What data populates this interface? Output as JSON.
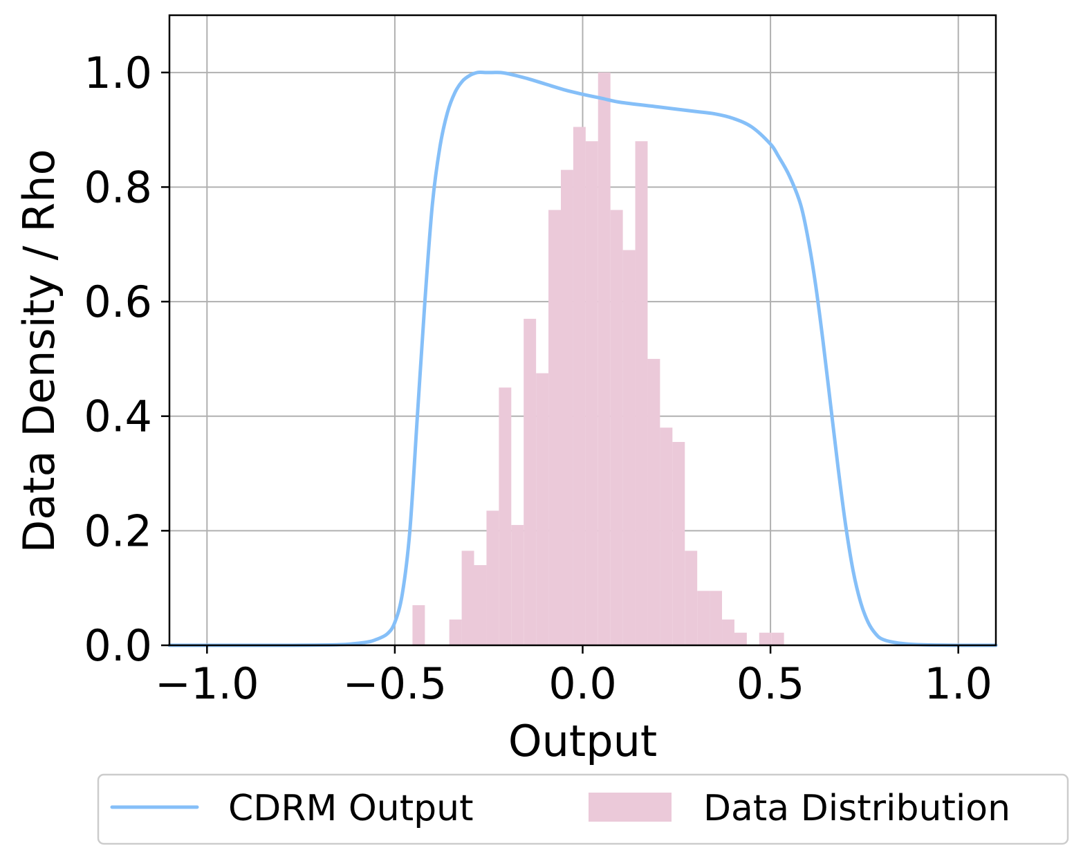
{
  "chart_data": {
    "type": "bar",
    "title": "",
    "xlabel": "Output",
    "ylabel": "Data Density / Rho",
    "xlim": [
      -1.1,
      1.1
    ],
    "ylim": [
      0.0,
      1.1
    ],
    "grid": true,
    "x_ticks": [
      -1.0,
      -0.5,
      0.0,
      0.5,
      1.0
    ],
    "x_tick_labels": [
      "−1.0",
      "−0.5",
      "0.0",
      "0.5",
      "1.0"
    ],
    "y_ticks": [
      0.0,
      0.2,
      0.4,
      0.6,
      0.8,
      1.0
    ],
    "y_tick_labels": [
      "0.0",
      "0.2",
      "0.4",
      "0.6",
      "0.8",
      "1.0"
    ],
    "legend": {
      "placement": "bottom-center",
      "entries": [
        {
          "label": "CDRM Output",
          "kind": "line",
          "color": "#85bff8"
        },
        {
          "label": "Data Distribution",
          "kind": "patch",
          "color": "#ebc9d9"
        }
      ]
    },
    "series": [
      {
        "name": "Data Distribution",
        "kind": "histogram",
        "color": "#ebc9d9",
        "bins": [
          {
            "x0": -0.453,
            "x1": -0.42,
            "value": 0.07
          },
          {
            "x0": -0.355,
            "x1": -0.322,
            "value": 0.045
          },
          {
            "x0": -0.322,
            "x1": -0.289,
            "value": 0.165
          },
          {
            "x0": -0.289,
            "x1": -0.256,
            "value": 0.14
          },
          {
            "x0": -0.256,
            "x1": -0.223,
            "value": 0.235
          },
          {
            "x0": -0.223,
            "x1": -0.19,
            "value": 0.45
          },
          {
            "x0": -0.19,
            "x1": -0.157,
            "value": 0.21
          },
          {
            "x0": -0.157,
            "x1": -0.124,
            "value": 0.57
          },
          {
            "x0": -0.124,
            "x1": -0.091,
            "value": 0.475
          },
          {
            "x0": -0.091,
            "x1": -0.058,
            "value": 0.76
          },
          {
            "x0": -0.058,
            "x1": -0.025,
            "value": 0.83
          },
          {
            "x0": -0.025,
            "x1": 0.008,
            "value": 0.905
          },
          {
            "x0": 0.008,
            "x1": 0.041,
            "value": 0.88
          },
          {
            "x0": 0.041,
            "x1": 0.074,
            "value": 1.0
          },
          {
            "x0": 0.074,
            "x1": 0.107,
            "value": 0.76
          },
          {
            "x0": 0.107,
            "x1": 0.14,
            "value": 0.69
          },
          {
            "x0": 0.14,
            "x1": 0.173,
            "value": 0.88
          },
          {
            "x0": 0.173,
            "x1": 0.206,
            "value": 0.5
          },
          {
            "x0": 0.206,
            "x1": 0.239,
            "value": 0.38
          },
          {
            "x0": 0.239,
            "x1": 0.272,
            "value": 0.355
          },
          {
            "x0": 0.272,
            "x1": 0.305,
            "value": 0.165
          },
          {
            "x0": 0.305,
            "x1": 0.338,
            "value": 0.095
          },
          {
            "x0": 0.338,
            "x1": 0.371,
            "value": 0.095
          },
          {
            "x0": 0.371,
            "x1": 0.404,
            "value": 0.045
          },
          {
            "x0": 0.404,
            "x1": 0.437,
            "value": 0.022
          },
          {
            "x0": 0.47,
            "x1": 0.503,
            "value": 0.022
          },
          {
            "x0": 0.503,
            "x1": 0.536,
            "value": 0.022
          }
        ]
      },
      {
        "name": "CDRM Output",
        "kind": "line",
        "color": "#85bff8",
        "x": [
          -1.1,
          -1.0,
          -0.8,
          -0.65,
          -0.58,
          -0.55,
          -0.52,
          -0.5,
          -0.48,
          -0.46,
          -0.44,
          -0.42,
          -0.4,
          -0.38,
          -0.36,
          -0.34,
          -0.32,
          -0.3,
          -0.28,
          -0.26,
          -0.24,
          -0.22,
          -0.2,
          -0.15,
          -0.1,
          -0.05,
          0.0,
          0.05,
          0.1,
          0.2,
          0.3,
          0.35,
          0.4,
          0.45,
          0.5,
          0.52,
          0.55,
          0.58,
          0.6,
          0.62,
          0.64,
          0.66,
          0.68,
          0.7,
          0.72,
          0.74,
          0.76,
          0.78,
          0.8,
          0.84,
          0.9,
          1.0,
          1.1
        ],
        "y": [
          0.0,
          0.0,
          0.0,
          0.001,
          0.005,
          0.01,
          0.02,
          0.04,
          0.09,
          0.2,
          0.4,
          0.6,
          0.77,
          0.87,
          0.93,
          0.965,
          0.985,
          0.995,
          1.0,
          1.0,
          1.0,
          1.0,
          0.998,
          0.99,
          0.98,
          0.97,
          0.962,
          0.955,
          0.948,
          0.94,
          0.932,
          0.928,
          0.92,
          0.905,
          0.875,
          0.855,
          0.82,
          0.77,
          0.71,
          0.63,
          0.53,
          0.42,
          0.31,
          0.21,
          0.13,
          0.075,
          0.04,
          0.02,
          0.01,
          0.004,
          0.001,
          0.0,
          0.0
        ]
      }
    ]
  }
}
